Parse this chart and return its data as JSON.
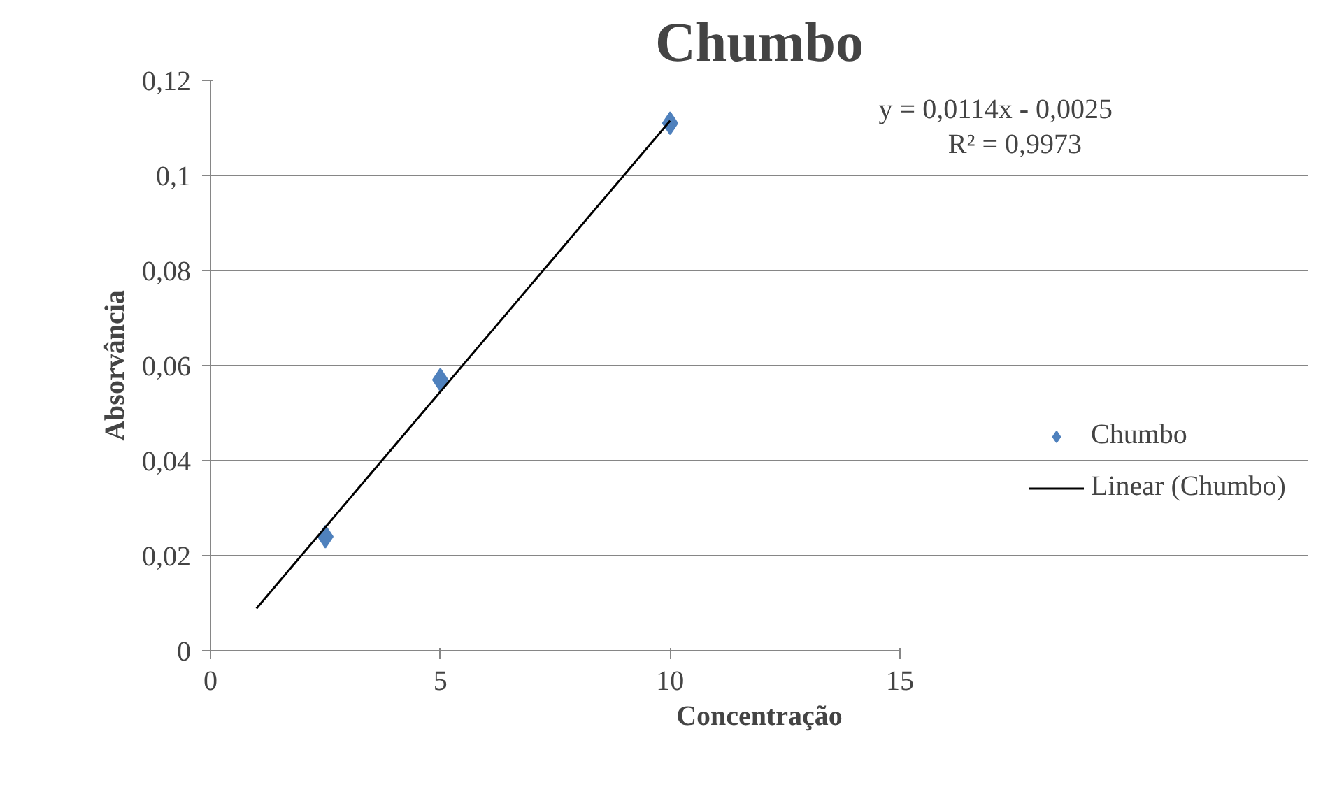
{
  "chart_data": {
    "type": "scatter",
    "title": "Chumbo",
    "xlabel": "Concentração",
    "ylabel": "Absorvância",
    "x": [
      2.5,
      5,
      10
    ],
    "series": [
      {
        "name": "Chumbo",
        "type": "scatter",
        "color": "#4f81bd",
        "marker": "diamond",
        "values": [
          0.024,
          0.057,
          0.111
        ]
      },
      {
        "name": "Linear (Chumbo)",
        "type": "line",
        "color": "#000000",
        "x": [
          1,
          10
        ],
        "values": [
          0.0089,
          0.1115
        ],
        "line_style": "solid"
      }
    ],
    "xlim": [
      0,
      15
    ],
    "xticks": [
      0,
      5,
      10,
      15
    ],
    "ylim": [
      0,
      0.12
    ],
    "yticks": [
      0,
      {
        "value": 0.02,
        "label": "0,02"
      },
      {
        "value": 0.04,
        "label": "0,04"
      },
      {
        "value": 0.06,
        "label": "0,06"
      },
      {
        "value": 0.08,
        "label": "0,08"
      },
      {
        "value": 0.1,
        "label": "0,1"
      },
      {
        "value": 0.12,
        "label": "0,12"
      }
    ],
    "grid": "y",
    "legend": "right",
    "annotations": [
      "y = 0,0114x - 0,0025",
      "R² = 0,9973"
    ]
  }
}
